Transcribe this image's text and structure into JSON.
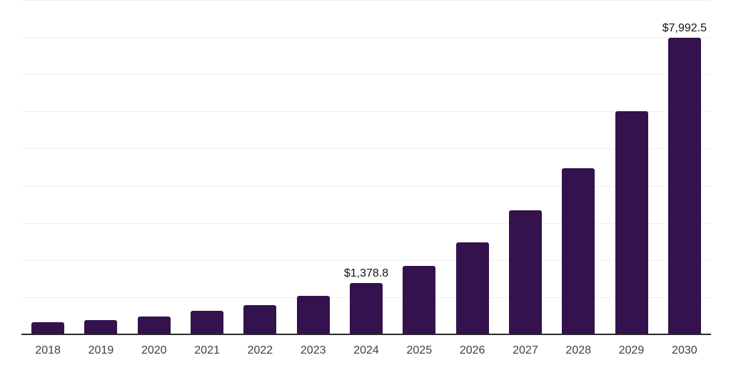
{
  "chart_data": {
    "type": "bar",
    "title": "",
    "xlabel": "",
    "ylabel": "",
    "categories": [
      "2018",
      "2019",
      "2020",
      "2021",
      "2022",
      "2023",
      "2024",
      "2025",
      "2026",
      "2027",
      "2028",
      "2029",
      "2030"
    ],
    "values": [
      330,
      390,
      475,
      625,
      790,
      1030,
      1378.8,
      1848,
      2480,
      3345,
      4480,
      6015,
      7992.5
    ],
    "value_labels": [
      null,
      null,
      null,
      null,
      null,
      null,
      "$1,378.8",
      null,
      null,
      null,
      null,
      null,
      "$7,992.5"
    ],
    "ylim": [
      0,
      9000
    ],
    "gridline_step": 1000,
    "grid": true,
    "y_tick_labels_visible": false,
    "legend": "none",
    "colors": {
      "bar": "#33124d",
      "gridline": "#efefef",
      "axis_line": "#2b2b2b",
      "tick_label": "#3f3f3f",
      "value_label": "#121212",
      "background": "#ffffff"
    }
  }
}
